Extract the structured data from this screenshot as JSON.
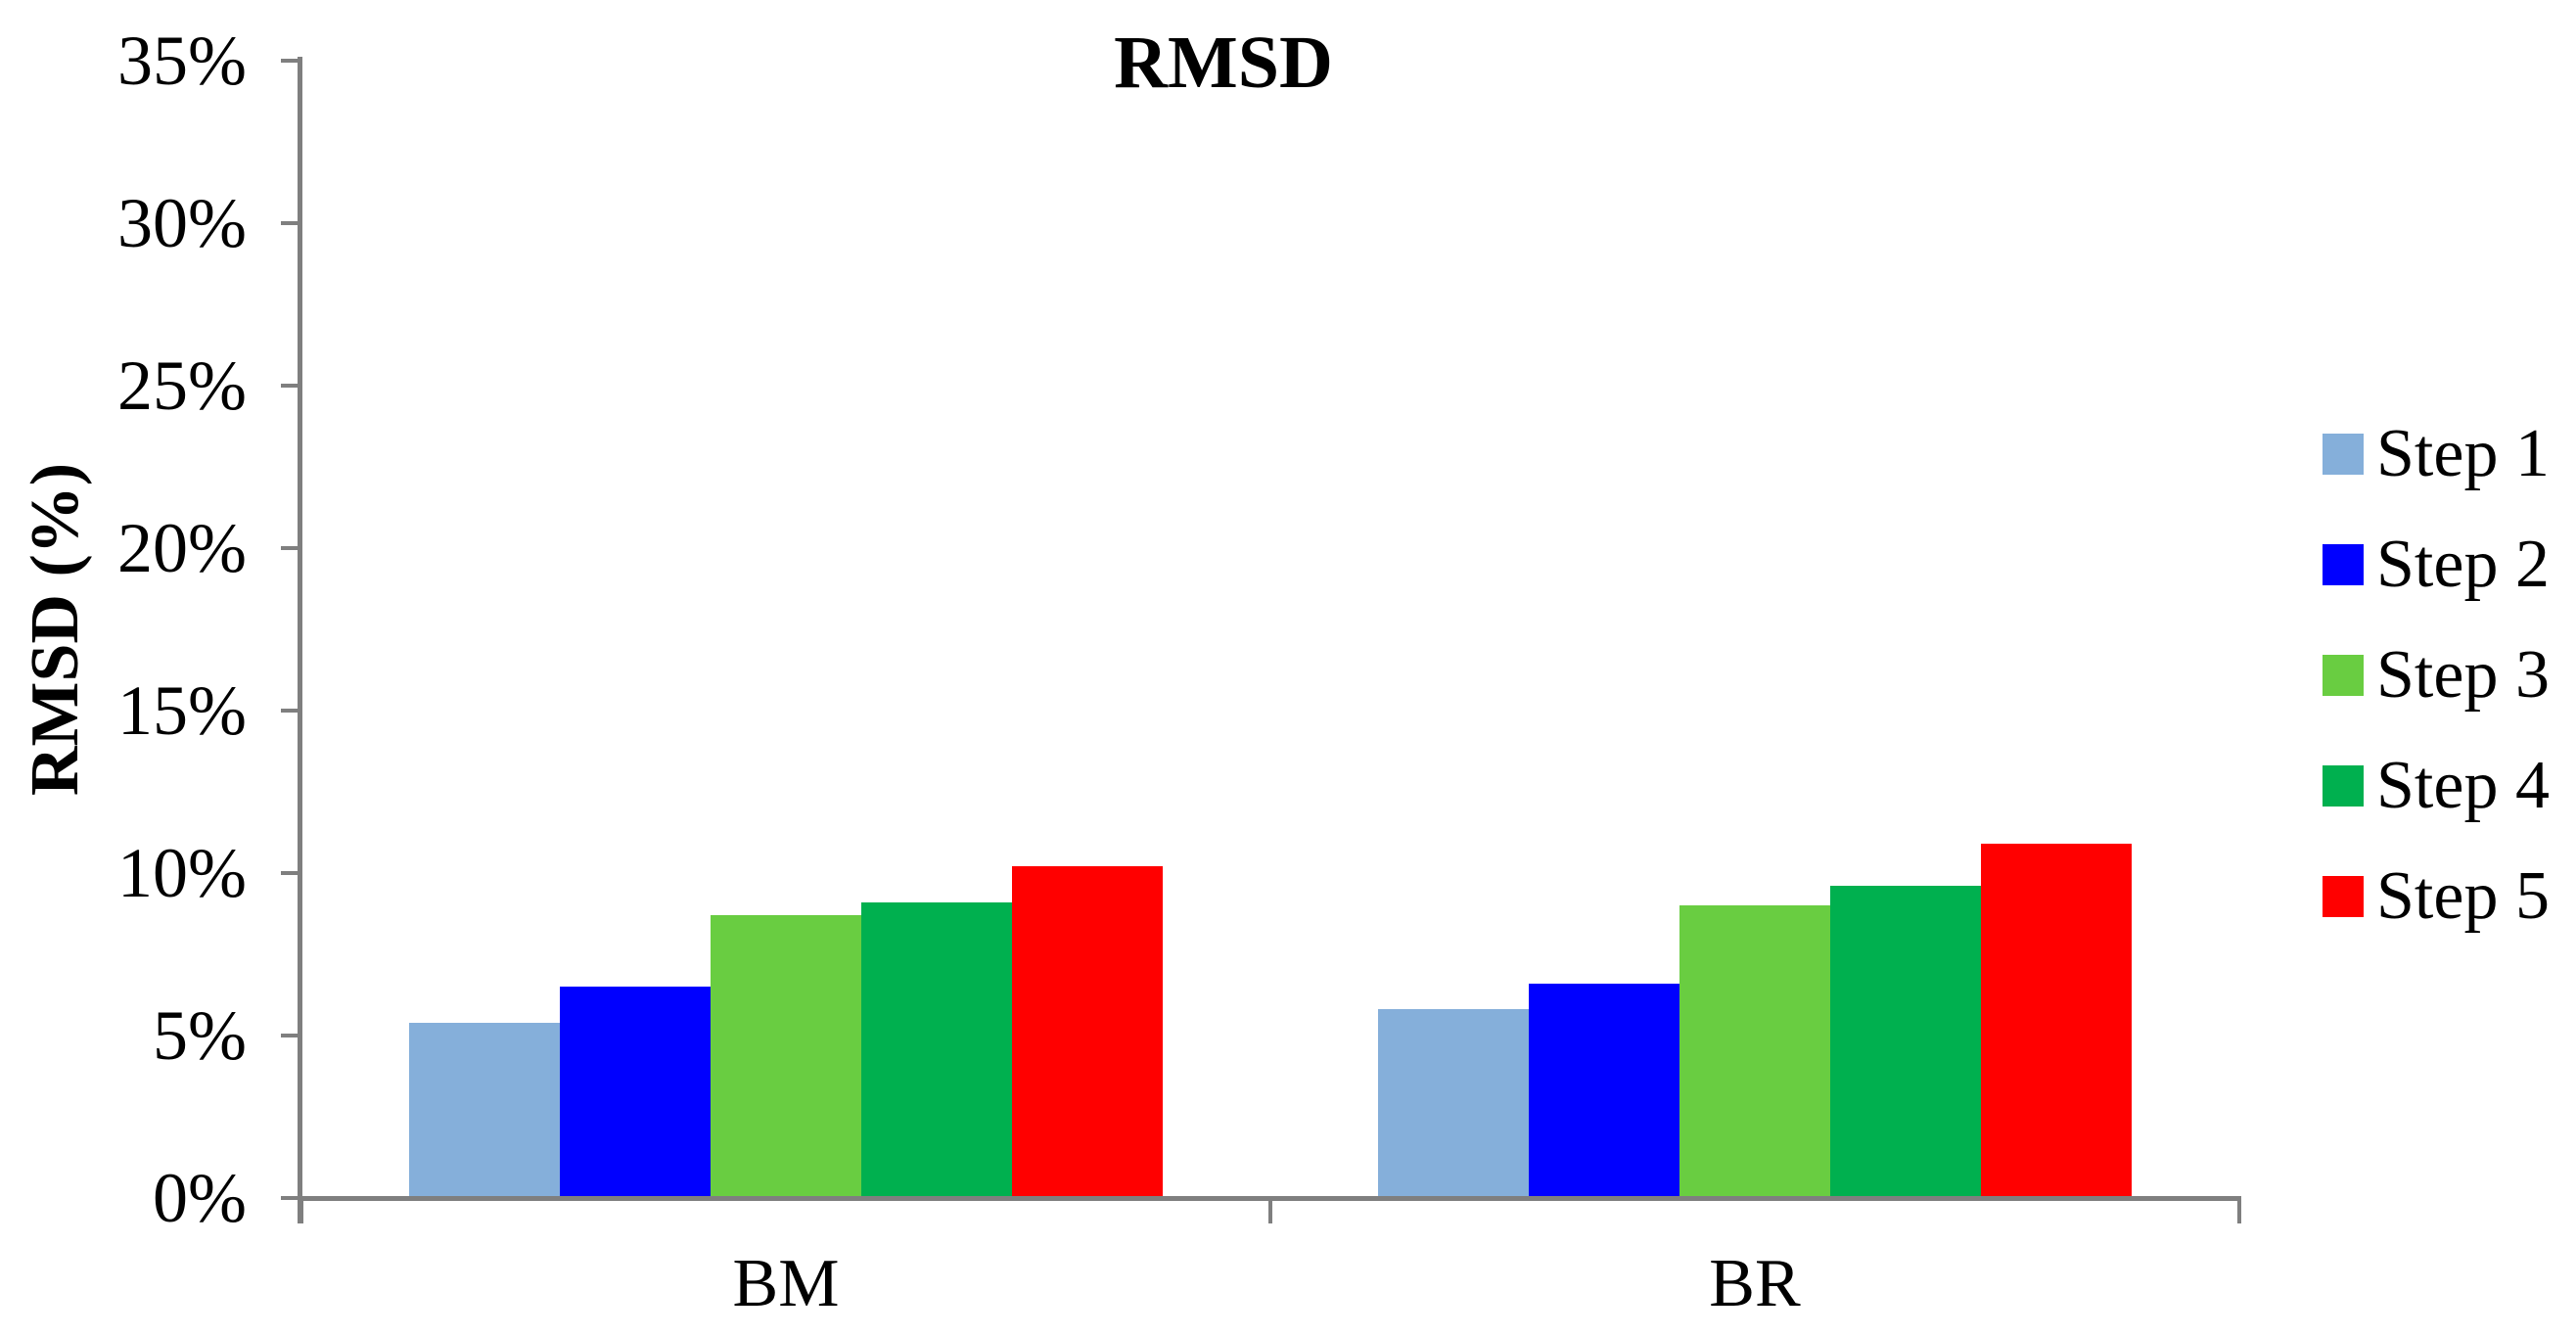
{
  "chart_data": {
    "type": "bar",
    "title": "RMSD",
    "ylabel": "RMSD (%)",
    "xlabel": "",
    "categories": [
      "BM",
      "BR"
    ],
    "series": [
      {
        "name": "Step 1",
        "color": "#85AFDA",
        "values": [
          5.4,
          5.8
        ]
      },
      {
        "name": "Step 2",
        "color": "#0000FF",
        "values": [
          6.5,
          6.6
        ]
      },
      {
        "name": "Step 3",
        "color": "#69CD41",
        "values": [
          8.7,
          9.0
        ]
      },
      {
        "name": "Step 4",
        "color": "#00B04F",
        "values": [
          9.1,
          9.6
        ]
      },
      {
        "name": "Step 5",
        "color": "#FF0000",
        "values": [
          10.2,
          10.9
        ]
      }
    ],
    "ylim": [
      0,
      35
    ],
    "ytick_step": 5,
    "yticks": [
      "0%",
      "5%",
      "10%",
      "15%",
      "20%",
      "25%",
      "30%",
      "35%"
    ],
    "grid": false,
    "legend_position": "right",
    "axis_color": "#7F7F7F"
  }
}
